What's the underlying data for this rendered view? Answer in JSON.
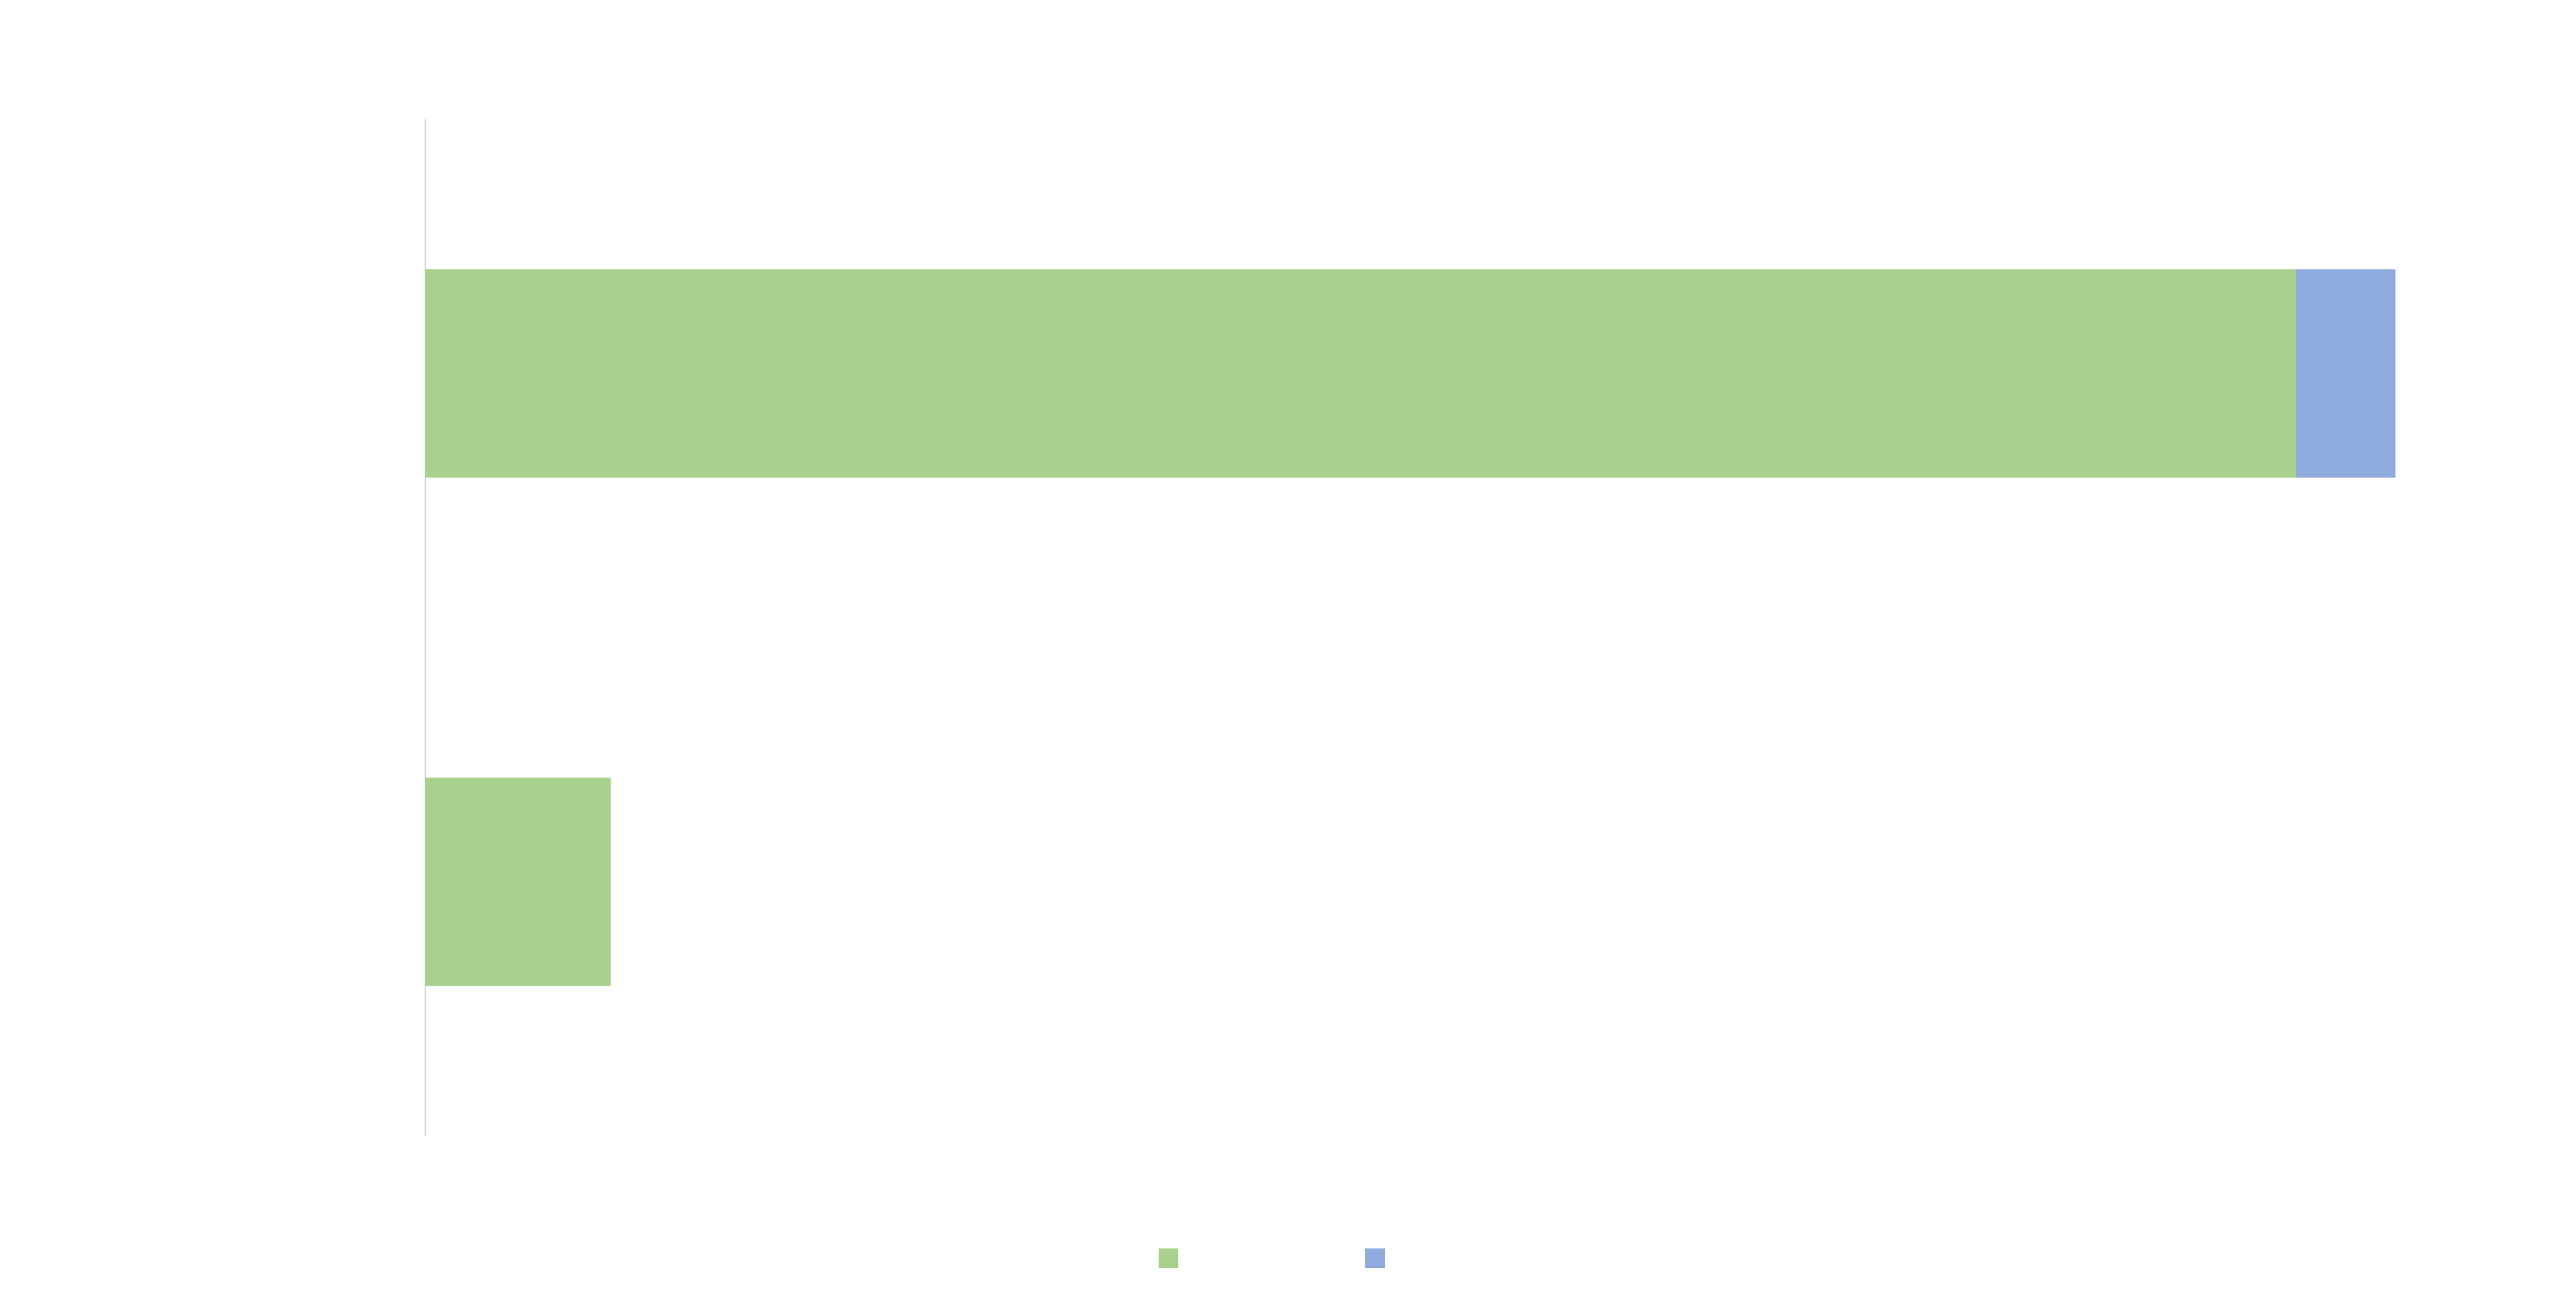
{
  "chart_data": {
    "type": "stacked_barh",
    "categories": [
      null,
      null
    ],
    "series": [
      {
        "color": "#a9d18e",
        "values": [
          1130,
          112
        ]
      },
      {
        "color": "#8faadc",
        "values": [
          60,
          0
        ]
      }
    ],
    "xlim": [
      0,
      1243
    ],
    "legend": "bottom"
  }
}
